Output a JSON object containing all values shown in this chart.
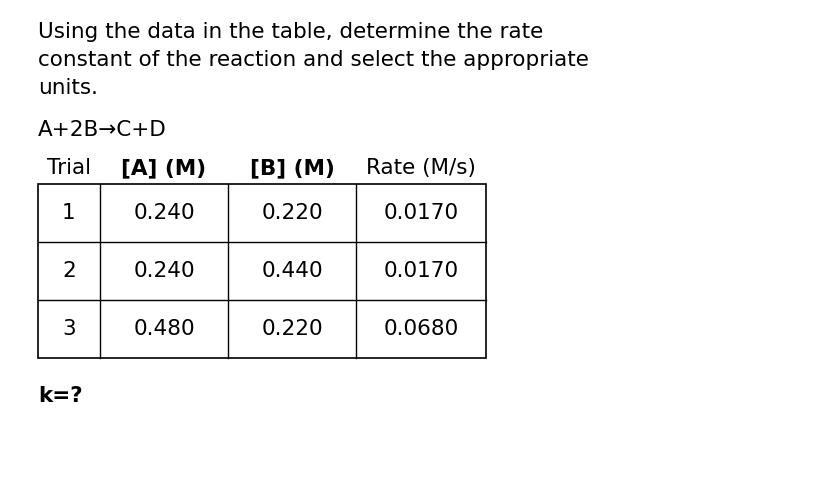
{
  "title_line1": "Using the data in the table, determine the rate",
  "title_line2": "constant of the reaction and select the appropriate",
  "title_line3": "units.",
  "reaction_parts": [
    "A+2B",
    "→",
    "C+D"
  ],
  "reaction_bold": [
    false,
    false,
    false
  ],
  "col_header_segments": [
    [
      [
        "Trial",
        false
      ]
    ],
    [
      [
        "[",
        true
      ],
      [
        "A",
        true
      ],
      [
        "]",
        true
      ],
      [
        " (",
        true
      ],
      [
        "M",
        true
      ],
      [
        ")",
        true
      ]
    ],
    [
      [
        "[",
        true
      ],
      [
        "B",
        true
      ],
      [
        "]",
        true
      ],
      [
        " (",
        true
      ],
      [
        "M",
        true
      ],
      [
        ")",
        true
      ]
    ],
    [
      [
        "Rate (M/s)",
        false
      ]
    ]
  ],
  "table_data": [
    [
      "1",
      "0.240",
      "0.220",
      "0.0170"
    ],
    [
      "2",
      "0.240",
      "0.440",
      "0.0170"
    ],
    [
      "3",
      "0.480",
      "0.220",
      "0.0680"
    ]
  ],
  "footer": "k=?",
  "bg_color": "#ffffff",
  "text_color": "#000000",
  "font_size": 15.5
}
